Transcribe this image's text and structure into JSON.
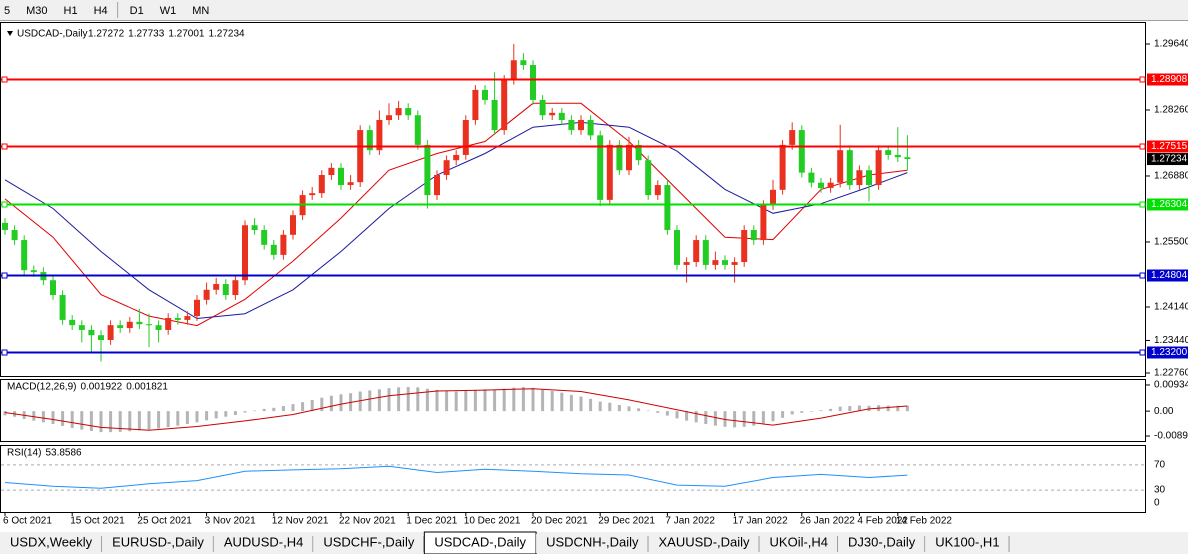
{
  "toolbar": {
    "timeframes": [
      "5",
      "M30",
      "H1",
      "H4",
      "D1",
      "W1",
      "MN"
    ]
  },
  "chart_data": [
    {
      "type": "candlestick",
      "title": "USDCAD-,Daily",
      "header_values": [
        1.27272,
        1.27733,
        1.27001,
        1.27234
      ],
      "xlim": [
        -0.52,
        118.75
      ],
      "xticks": [
        {
          "value": 0,
          "label": "6 Oct 2021"
        },
        {
          "value": 7,
          "label": "15 Oct 2021"
        },
        {
          "value": 14,
          "label": "25 Oct 2021"
        },
        {
          "value": 21,
          "label": "3 Nov 2021"
        },
        {
          "value": 28,
          "label": "12 Nov 2021"
        },
        {
          "value": 35,
          "label": "22 Nov 2021"
        },
        {
          "value": 42,
          "label": "1 Dec 2021"
        },
        {
          "value": 48,
          "label": "10 Dec 2021"
        },
        {
          "value": 55,
          "label": "20 Dec 2021"
        },
        {
          "value": 62,
          "label": "29 Dec 2021"
        },
        {
          "value": 69,
          "label": "7 Jan 2022"
        },
        {
          "value": 76,
          "label": "17 Jan 2022"
        },
        {
          "value": 83,
          "label": "26 Jan 2022"
        },
        {
          "value": 89,
          "label": "4 Feb 2022"
        },
        {
          "value": 93,
          "label": "14 Feb 2022"
        }
      ],
      "ylim": [
        1.22697,
        1.301
      ],
      "yticks": [
        {
          "value": 1.2964,
          "label": "1.29640"
        },
        {
          "value": 1.2826,
          "label": "1.28260"
        },
        {
          "value": 1.2688,
          "label": "1.26880"
        },
        {
          "value": 1.255,
          "label": "1.25500"
        },
        {
          "value": 1.2414,
          "label": "1.24140"
        },
        {
          "value": 1.2344,
          "label": "1.23440"
        },
        {
          "value": 1.2276,
          "label": "1.22760"
        }
      ],
      "up_color": "#e8311f",
      "down_color": "#22cc22",
      "open": [
        1.259,
        1.2575,
        1.2554,
        1.2491,
        1.2487,
        1.247,
        1.2439,
        1.2387,
        1.2376,
        1.2366,
        1.2355,
        1.2345,
        1.2376,
        1.237,
        1.2383,
        1.2378,
        1.2376,
        1.2366,
        1.2391,
        1.2387,
        1.2395,
        1.2429,
        1.245,
        1.2462,
        1.2439,
        1.247,
        1.2585,
        1.2575,
        1.2544,
        1.2523,
        1.2565,
        1.2606,
        1.2648,
        1.2652,
        1.269,
        1.2705,
        1.2669,
        1.2675,
        1.2784,
        1.2742,
        1.2805,
        1.2815,
        1.283,
        1.2815,
        1.2753,
        1.2648,
        1.269,
        1.2721,
        1.2732,
        1.2805,
        1.2868,
        1.2847,
        1.2784,
        1.2889,
        1.293,
        1.292,
        1.2847,
        1.2815,
        1.282,
        1.2805,
        1.2784,
        1.2805,
        1.2773,
        1.2638,
        1.2753,
        1.27,
        1.2753,
        1.2721,
        1.2648,
        1.2669,
        1.2575,
        1.2502,
        1.2508,
        1.2554,
        1.2502,
        1.2512,
        1.2502,
        1.2508,
        1.2575,
        1.2554,
        1.2627,
        1.2659,
        1.2753,
        1.2784,
        1.2695,
        1.2674,
        1.2663,
        1.2674,
        1.2742,
        1.2669,
        1.27,
        1.2669,
        1.2742,
        1.2732,
        1.27272
      ],
      "high": [
        1.26,
        1.2585,
        1.2564,
        1.2501,
        1.2497,
        1.248,
        1.2449,
        1.2397,
        1.2386,
        1.2376,
        1.2365,
        1.2386,
        1.2386,
        1.2393,
        1.241,
        1.24,
        1.2386,
        1.2401,
        1.2401,
        1.2405,
        1.2439,
        1.2465,
        1.2475,
        1.2472,
        1.248,
        1.2595,
        1.26,
        1.2585,
        1.2554,
        1.2575,
        1.2616,
        1.2658,
        1.2665,
        1.27,
        1.2715,
        1.2715,
        1.269,
        1.2794,
        1.2794,
        1.2825,
        1.284,
        1.2845,
        1.284,
        1.2825,
        1.2763,
        1.27,
        1.2731,
        1.2742,
        1.2815,
        1.2878,
        1.2878,
        1.2905,
        1.2899,
        1.2964,
        1.2945,
        1.293,
        1.2857,
        1.283,
        1.283,
        1.2815,
        1.2815,
        1.2815,
        1.2783,
        1.2763,
        1.2763,
        1.277,
        1.2763,
        1.2731,
        1.2679,
        1.2679,
        1.2585,
        1.2518,
        1.2564,
        1.2564,
        1.253,
        1.2522,
        1.2518,
        1.2585,
        1.2585,
        1.2637,
        1.268,
        1.2763,
        1.28,
        1.2794,
        1.2705,
        1.2684,
        1.2684,
        1.2795,
        1.2752,
        1.271,
        1.271,
        1.2752,
        1.2752,
        1.279,
        1.27733
      ],
      "low": [
        1.2565,
        1.2544,
        1.2481,
        1.2477,
        1.246,
        1.2429,
        1.2377,
        1.2366,
        1.234,
        1.232,
        1.23,
        1.2335,
        1.236,
        1.236,
        1.2368,
        1.233,
        1.234,
        1.2356,
        1.2377,
        1.2377,
        1.2385,
        1.2419,
        1.244,
        1.2429,
        1.2429,
        1.246,
        1.2565,
        1.2534,
        1.2513,
        1.2513,
        1.2555,
        1.2596,
        1.2638,
        1.2642,
        1.268,
        1.2659,
        1.2659,
        1.2665,
        1.2732,
        1.2732,
        1.2795,
        1.2805,
        1.2805,
        1.2743,
        1.262,
        1.2638,
        1.268,
        1.2711,
        1.2722,
        1.2795,
        1.2837,
        1.2774,
        1.2774,
        1.2879,
        1.291,
        1.2837,
        1.2805,
        1.2805,
        1.2795,
        1.2774,
        1.2774,
        1.2763,
        1.2625,
        1.2628,
        1.269,
        1.269,
        1.2711,
        1.2638,
        1.2638,
        1.2565,
        1.2492,
        1.2465,
        1.2498,
        1.2492,
        1.2492,
        1.2492,
        1.2465,
        1.2498,
        1.2544,
        1.2544,
        1.2617,
        1.2649,
        1.2743,
        1.2685,
        1.2664,
        1.2653,
        1.2653,
        1.2664,
        1.2659,
        1.2659,
        1.2635,
        1.2659,
        1.2722,
        1.2717,
        1.27001
      ],
      "close": [
        1.2575,
        1.2554,
        1.2491,
        1.2487,
        1.247,
        1.2439,
        1.2387,
        1.2376,
        1.2366,
        1.2355,
        1.2345,
        1.2376,
        1.237,
        1.2383,
        1.2378,
        1.2376,
        1.2366,
        1.2391,
        1.2387,
        1.2395,
        1.2429,
        1.245,
        1.2462,
        1.2439,
        1.247,
        1.2585,
        1.2575,
        1.2544,
        1.2523,
        1.2565,
        1.2606,
        1.2648,
        1.2652,
        1.269,
        1.2705,
        1.2669,
        1.2675,
        1.2784,
        1.2742,
        1.2805,
        1.2815,
        1.283,
        1.2815,
        1.2753,
        1.2648,
        1.269,
        1.2721,
        1.2732,
        1.2805,
        1.2868,
        1.2847,
        1.2784,
        1.2889,
        1.293,
        1.292,
        1.2847,
        1.2815,
        1.282,
        1.2805,
        1.2784,
        1.2805,
        1.2773,
        1.2638,
        1.2753,
        1.27,
        1.2753,
        1.2721,
        1.2648,
        1.2669,
        1.2575,
        1.2502,
        1.2508,
        1.2554,
        1.2502,
        1.2512,
        1.2502,
        1.2508,
        1.2575,
        1.2554,
        1.2627,
        1.2659,
        1.2753,
        1.2784,
        1.2695,
        1.2674,
        1.2663,
        1.2674,
        1.2742,
        1.2669,
        1.27,
        1.2669,
        1.2742,
        1.2732,
        1.27272,
        1.27234
      ],
      "series": [
        {
          "color": "#e00000",
          "x": [
            0,
            5,
            10,
            15,
            20,
            25,
            30,
            35,
            40,
            45,
            50,
            55,
            60,
            65,
            70,
            75,
            80,
            85,
            90,
            94
          ],
          "values": [
            1.264,
            1.256,
            1.244,
            1.2395,
            1.2375,
            1.243,
            1.251,
            1.26,
            1.27,
            1.2735,
            1.276,
            1.284,
            1.284,
            1.276,
            1.266,
            1.256,
            1.2555,
            1.266,
            1.269,
            1.27
          ]
        },
        {
          "color": "#1a1aa0",
          "x": [
            0,
            5,
            10,
            15,
            20,
            25,
            30,
            35,
            40,
            45,
            50,
            55,
            60,
            65,
            70,
            75,
            80,
            85,
            90,
            94
          ],
          "values": [
            1.268,
            1.262,
            1.253,
            1.245,
            1.239,
            1.24,
            1.245,
            1.253,
            1.262,
            1.269,
            1.2735,
            1.279,
            1.28,
            1.279,
            1.274,
            1.266,
            1.261,
            1.263,
            1.2665,
            1.2695
          ]
        }
      ],
      "levels": [
        {
          "value": 1.28908,
          "color": "#ff0000"
        },
        {
          "value": 1.27515,
          "color": "#ff0000"
        },
        {
          "value": 1.26304,
          "color": "#00e000"
        },
        {
          "value": 1.24804,
          "color": "#0000cc"
        },
        {
          "value": {
            "value": 1.232,
            "label": "1.23200"
          },
          "color": "#0000cc"
        }
      ],
      "last_price": 1.27234
    },
    {
      "type": "macd",
      "title": "MACD(12,26,9)",
      "readout": [
        0.001922,
        0.001821
      ],
      "ylim": [
        -0.01103,
        0.01112
      ],
      "yticks": [
        {
          "value": 0.009345,
          "label": "0.009345"
        },
        {
          "value": 0,
          "label": "0.00"
        },
        {
          "value": -0.0089,
          "label": "-0.00890"
        }
      ],
      "histogram": {
        "color": "#b4b4b4",
        "values": [
          -0.0015,
          -0.002,
          -0.0028,
          -0.0034,
          -0.004,
          -0.0046,
          -0.0053,
          -0.006,
          -0.0066,
          -0.0071,
          -0.0075,
          -0.0075,
          -0.0074,
          -0.0072,
          -0.0069,
          -0.0066,
          -0.0062,
          -0.0057,
          -0.0052,
          -0.0046,
          -0.004,
          -0.0033,
          -0.0026,
          -0.002,
          -0.0014,
          -0.0005,
          0.0002,
          0.0008,
          0.0012,
          0.0018,
          0.0025,
          0.0032,
          0.004,
          0.0048,
          0.0055,
          0.006,
          0.0064,
          0.007,
          0.0074,
          0.0078,
          0.0082,
          0.0085,
          0.0086,
          0.0085,
          0.008,
          0.0076,
          0.0073,
          0.007,
          0.0072,
          0.0076,
          0.0078,
          0.0077,
          0.008,
          0.0084,
          0.0086,
          0.0083,
          0.0078,
          0.0072,
          0.0066,
          0.0058,
          0.0052,
          0.0044,
          0.0034,
          0.003,
          0.0022,
          0.0017,
          0.001,
          0.0002,
          -0.0006,
          -0.0016,
          -0.0026,
          -0.0034,
          -0.004,
          -0.0046,
          -0.0052,
          -0.0056,
          -0.0058,
          -0.0056,
          -0.0052,
          -0.0044,
          -0.0036,
          -0.0024,
          -0.0012,
          -0.0006,
          -0.0002,
          0.0003,
          0.0008,
          0.0016,
          0.0018,
          0.002,
          0.0019,
          0.0021,
          0.002,
          0.0019,
          0.001922
        ]
      },
      "signal": {
        "color": "#cc0000",
        "x": [
          0,
          5,
          10,
          15,
          20,
          25,
          30,
          35,
          40,
          45,
          50,
          55,
          60,
          65,
          70,
          75,
          80,
          85,
          90,
          94
        ],
        "values": [
          -0.0005,
          -0.003,
          -0.0058,
          -0.0068,
          -0.0055,
          -0.0035,
          -0.0012,
          0.0025,
          0.0055,
          0.0072,
          0.0075,
          0.008,
          0.007,
          0.004,
          0.0005,
          -0.003,
          -0.005,
          -0.0025,
          0.0008,
          0.001821
        ]
      }
    },
    {
      "type": "rsi",
      "title": "RSI(14)",
      "readout": 53.8586,
      "ylim": [
        0,
        100
      ],
      "yticks": [
        70,
        30,
        0
      ],
      "line": {
        "color": "#1e90ff",
        "x": [
          0,
          5,
          10,
          15,
          20,
          25,
          30,
          35,
          40,
          45,
          50,
          55,
          60,
          65,
          70,
          75,
          80,
          85,
          90,
          94
        ],
        "values": [
          42,
          36,
          33,
          40,
          45,
          60,
          62,
          64,
          68,
          58,
          63,
          60,
          56,
          54,
          38,
          36,
          50,
          55,
          50,
          53.8586
        ]
      }
    }
  ],
  "tabs": {
    "items": [
      "USDX,Weekly",
      "EURUSD-,Daily",
      "AUDUSD-,H4",
      "USDCHF-,Daily",
      "USDCAD-,Daily",
      "USDCNH-,Daily",
      "XAUUSD-,Daily",
      "UKOil-,H4",
      "DJ30-,Daily",
      "UK100-,H1"
    ],
    "active": 4
  }
}
